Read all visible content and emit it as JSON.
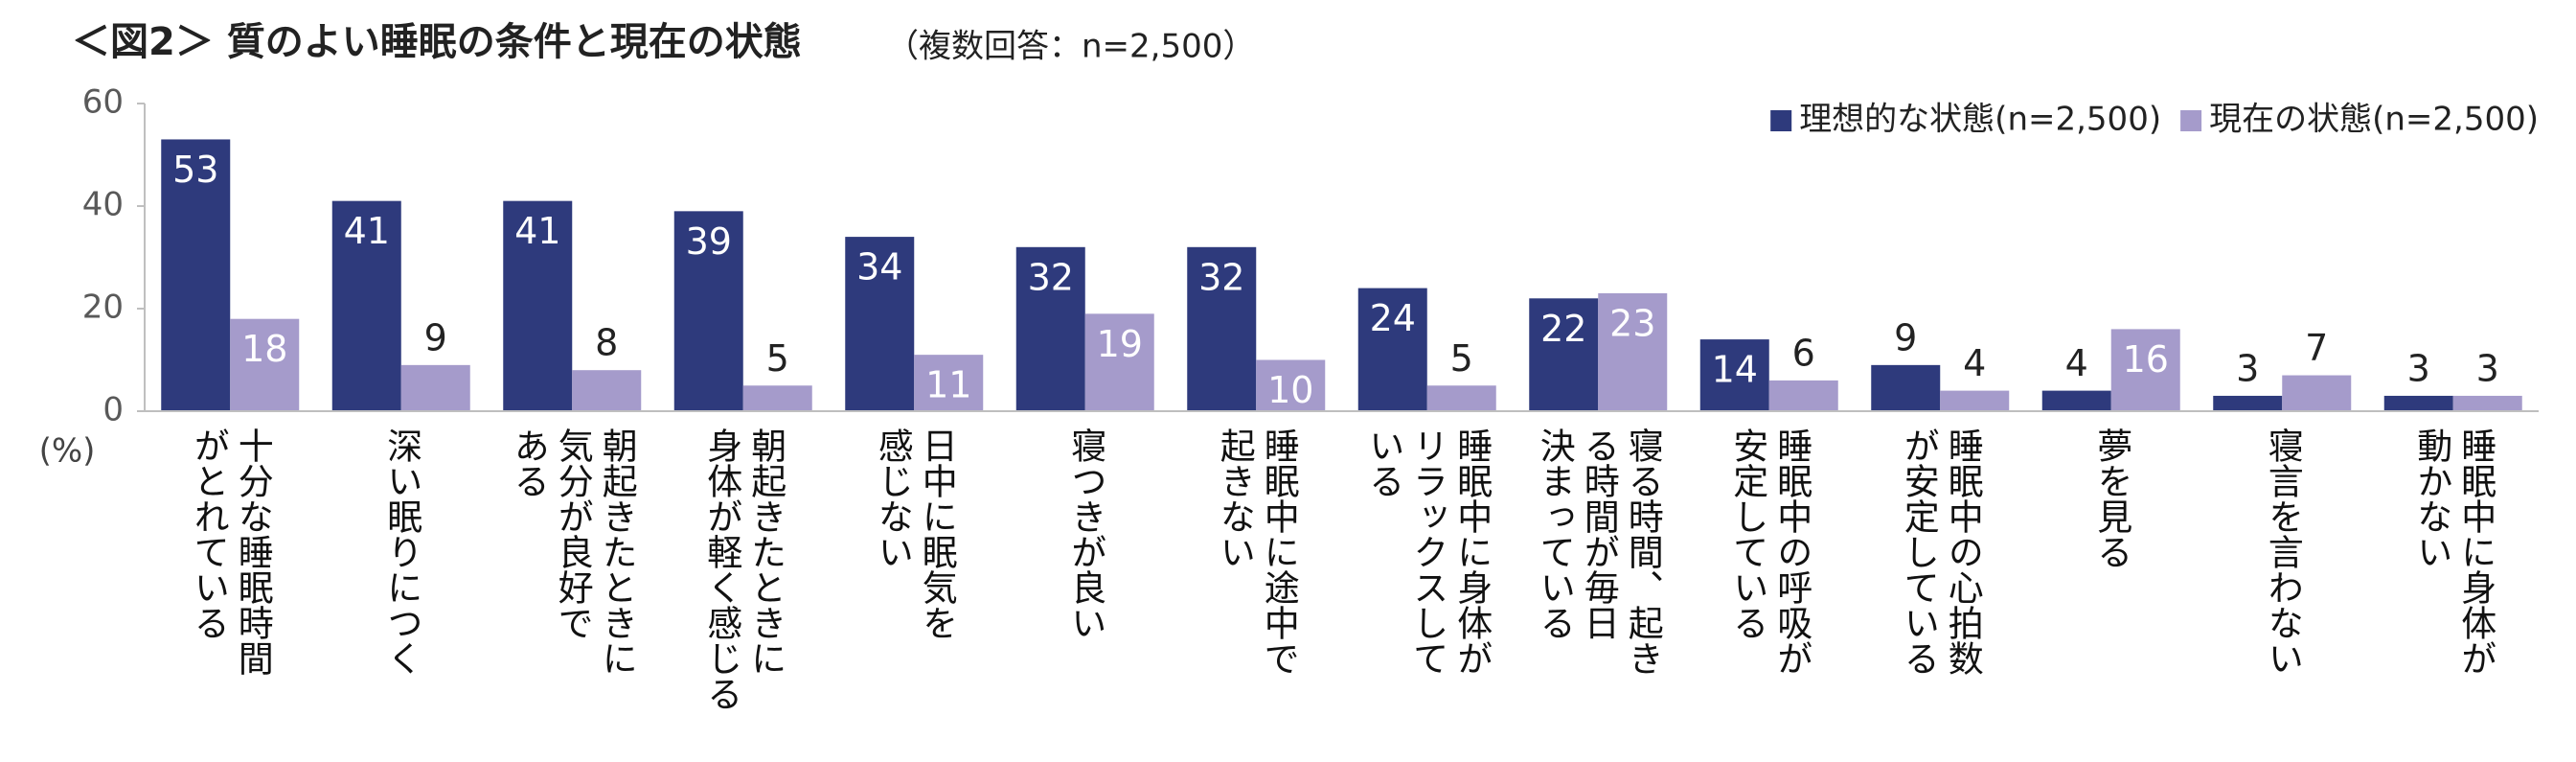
{
  "chart_data": {
    "type": "bar",
    "title": "＜図2＞ 質のよい睡眠の条件と現在の状態",
    "subtitle": "（複数回答：n=2,500）",
    "y_unit": "(%)",
    "categories": [
      "十分な睡眠時間\nがとれている",
      "深い眠りにつく",
      "朝起きたときに\n気分が良好で\nある",
      "朝起きたときに\n身体が軽く感じる",
      "日中に眠気を\n感じない",
      "寝つきが良い",
      "睡眠中に途中で\n起きない",
      "睡眠中に身体が\nリラックスして\nいる",
      "寝る時間、起き\nる時間が毎日\n決まっている",
      "睡眠中の呼吸が\n安定している",
      "睡眠中の心拍数\nが安定している",
      "夢を見る",
      "寝言を言わない",
      "睡眠中に身体が\n動かない"
    ],
    "series": [
      {
        "name": "理想的な状態(n=2,500)",
        "color": "#2e3a7c",
        "values": [
          53,
          41,
          41,
          39,
          34,
          32,
          32,
          24,
          22,
          14,
          9,
          4,
          3,
          3
        ]
      },
      {
        "name": "現在の状態(n=2,500)",
        "color": "#a59bcb",
        "values": [
          18,
          9,
          8,
          5,
          11,
          19,
          10,
          5,
          23,
          6,
          4,
          16,
          7,
          3
        ]
      }
    ],
    "ylim": [
      0,
      60
    ],
    "yticks": [
      0,
      20,
      40,
      60
    ],
    "grid": false,
    "legend": "top-right"
  }
}
